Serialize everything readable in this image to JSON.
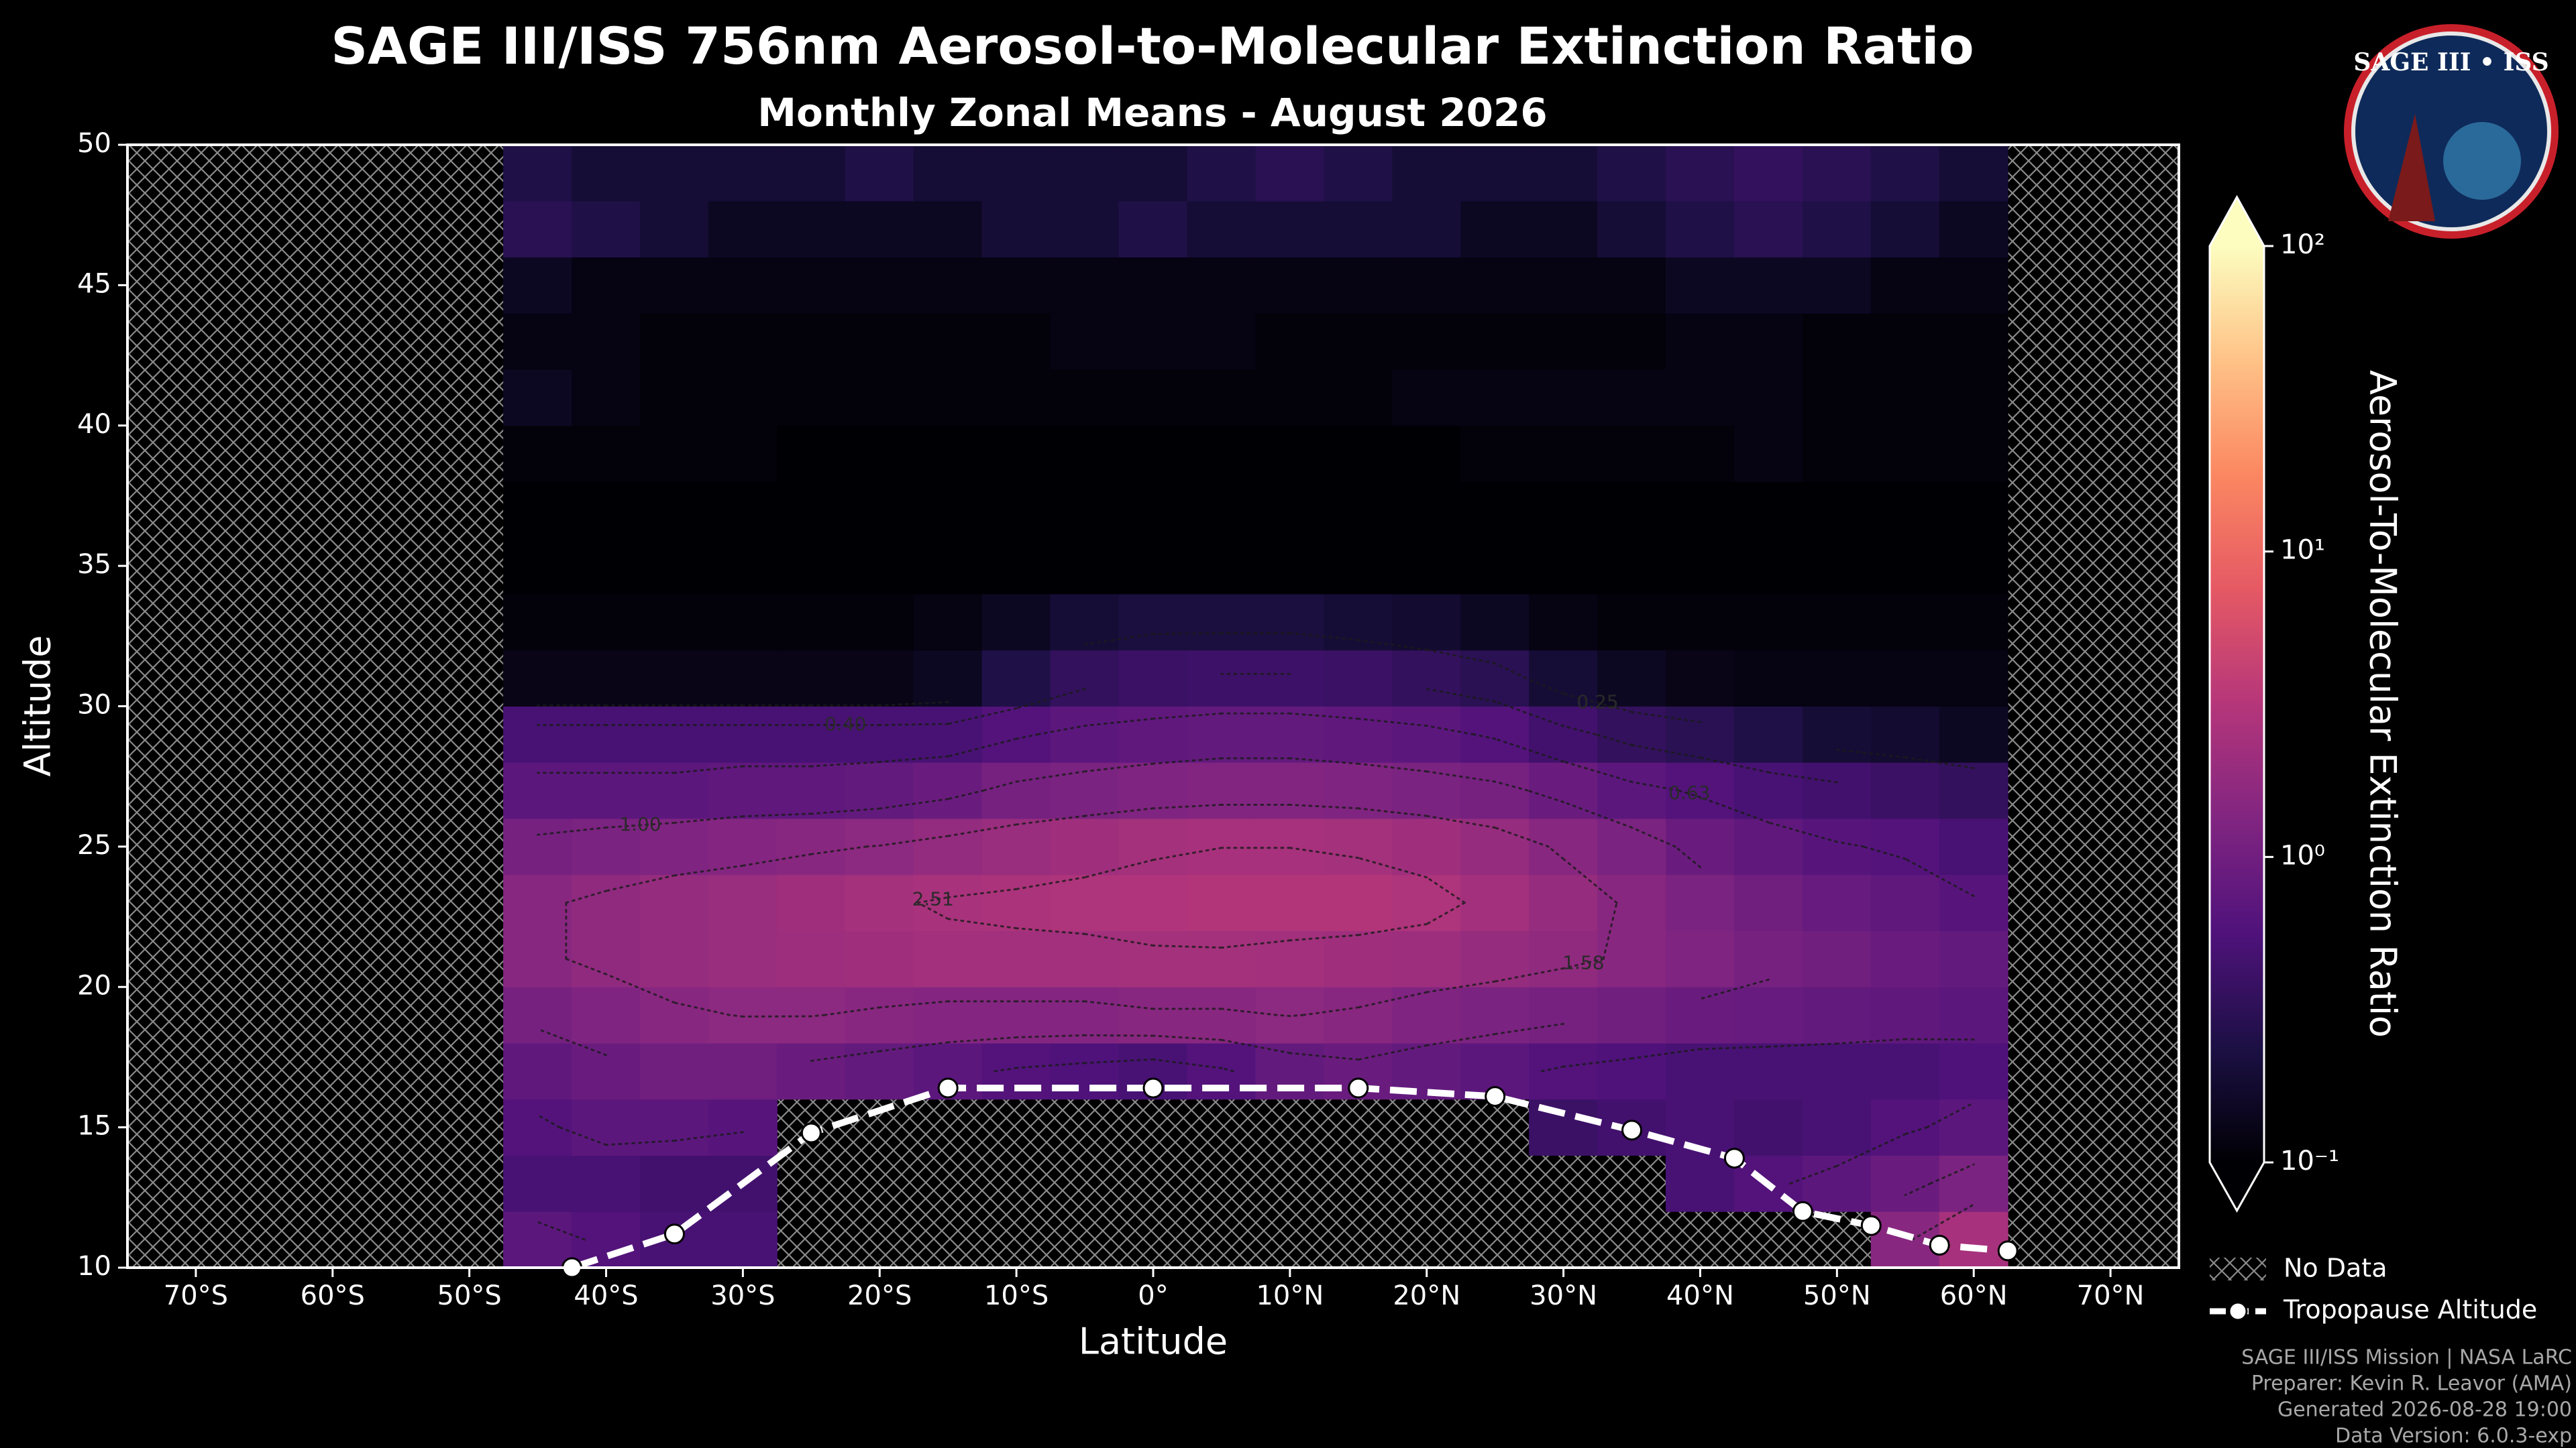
{
  "chart_data": {
    "type": "contour",
    "title": "SAGE III/ISS 756nm Aerosol-to-Molecular Extinction Ratio",
    "subtitle": "Monthly Zonal Means - August 2026",
    "x_label": "Latitude",
    "y_label": "Altitude",
    "xlim": [
      -75,
      75
    ],
    "xticks": [
      {
        "value": -70,
        "label": "70°S"
      },
      {
        "value": -60,
        "label": "60°S"
      },
      {
        "value": -50,
        "label": "50°S"
      },
      {
        "value": -40,
        "label": "40°S"
      },
      {
        "value": -30,
        "label": "30°S"
      },
      {
        "value": -20,
        "label": "20°S"
      },
      {
        "value": -10,
        "label": "10°S"
      },
      {
        "value": 0,
        "label": "0°"
      },
      {
        "value": 10,
        "label": "10°N"
      },
      {
        "value": 20,
        "label": "20°N"
      },
      {
        "value": 30,
        "label": "30°N"
      },
      {
        "value": 40,
        "label": "40°N"
      },
      {
        "value": 50,
        "label": "50°N"
      },
      {
        "value": 60,
        "label": "60°N"
      },
      {
        "value": 70,
        "label": "70°N"
      }
    ],
    "ylim": [
      10,
      50
    ],
    "yticks": [
      10,
      15,
      20,
      25,
      30,
      35,
      40,
      45,
      50
    ],
    "x_edges": [
      -47.5,
      -42.5,
      -37.5,
      -32.5,
      -27.5,
      -22.5,
      -17.5,
      -12.5,
      -7.5,
      -2.5,
      2.5,
      7.5,
      12.5,
      17.5,
      22.5,
      27.5,
      32.5,
      37.5,
      42.5,
      47.5,
      52.5,
      57.5,
      62.5
    ],
    "y_edges": [
      10,
      12,
      14,
      16,
      18,
      20,
      22,
      24,
      26,
      28,
      30,
      32,
      34,
      36,
      38,
      40,
      42,
      44,
      46,
      48,
      50
    ],
    "z": [
      [
        0.7,
        0.6,
        0.5,
        0.5,
        null,
        null,
        null,
        null,
        null,
        null,
        null,
        null,
        null,
        null,
        null,
        null,
        null,
        null,
        null,
        null,
        1.5,
        2.5
      ],
      [
        0.5,
        0.5,
        0.45,
        0.45,
        null,
        null,
        null,
        null,
        null,
        null,
        null,
        null,
        null,
        null,
        null,
        null,
        null,
        0.5,
        0.6,
        0.7,
        0.9,
        1.2
      ],
      [
        0.6,
        0.7,
        0.7,
        0.65,
        null,
        null,
        null,
        null,
        null,
        null,
        null,
        null,
        null,
        null,
        null,
        0.4,
        0.45,
        0.5,
        0.45,
        0.5,
        0.6,
        0.7
      ],
      [
        0.75,
        0.9,
        1,
        1,
        0.9,
        0.8,
        0.7,
        0.6,
        0.55,
        0.5,
        0.6,
        0.8,
        0.9,
        0.8,
        0.7,
        0.6,
        0.55,
        0.5,
        0.5,
        0.5,
        0.5,
        0.55
      ],
      [
        1.1,
        1.3,
        1.5,
        1.6,
        1.6,
        1.5,
        1.4,
        1.4,
        1.4,
        1.5,
        1.5,
        1.6,
        1.5,
        1.3,
        1.2,
        1.1,
        1,
        0.9,
        0.85,
        0.8,
        0.75,
        0.7
      ],
      [
        1.5,
        1.7,
        1.9,
        2,
        2.1,
        2.2,
        2.3,
        2.3,
        2.3,
        2.4,
        2.4,
        2.3,
        2.2,
        2.1,
        1.9,
        1.7,
        1.5,
        1.3,
        1.1,
        1,
        0.9,
        0.8
      ],
      [
        1.5,
        1.7,
        1.9,
        2,
        2.2,
        2.4,
        2.6,
        2.7,
        2.8,
        2.9,
        3,
        3,
        3,
        2.8,
        2.3,
        1.9,
        1.5,
        1.2,
        1,
        0.85,
        0.75,
        0.65
      ],
      [
        1.1,
        1.2,
        1.3,
        1.4,
        1.5,
        1.6,
        1.8,
        2,
        2.2,
        2.4,
        2.5,
        2.5,
        2.4,
        2.2,
        1.9,
        1.5,
        1.2,
        0.9,
        0.75,
        0.65,
        0.6,
        0.5
      ],
      [
        0.7,
        0.7,
        0.7,
        0.75,
        0.75,
        0.8,
        0.9,
        1.1,
        1.2,
        1.3,
        1.35,
        1.35,
        1.3,
        1.2,
        1.1,
        0.9,
        0.7,
        0.6,
        0.5,
        0.45,
        0.4,
        0.35
      ],
      [
        0.5,
        0.5,
        0.5,
        0.5,
        0.5,
        0.5,
        0.5,
        0.6,
        0.7,
        0.75,
        0.8,
        0.8,
        0.75,
        0.7,
        0.6,
        0.45,
        0.35,
        0.3,
        0.25,
        0.2,
        0.18,
        0.15
      ],
      [
        0.13,
        0.13,
        0.13,
        0.13,
        0.13,
        0.13,
        0.15,
        0.25,
        0.35,
        0.4,
        0.42,
        0.42,
        0.4,
        0.35,
        0.3,
        0.2,
        0.15,
        0.13,
        0.12,
        0.12,
        0.12,
        0.12
      ],
      [
        0.11,
        0.11,
        0.11,
        0.11,
        0.11,
        0.11,
        0.12,
        0.15,
        0.2,
        0.22,
        0.22,
        0.22,
        0.2,
        0.18,
        0.15,
        0.12,
        0.11,
        0.11,
        0.11,
        0.11,
        0.11,
        0.11
      ],
      [
        0.1,
        0.1,
        0.1,
        0.1,
        0.1,
        0.1,
        0.1,
        0.1,
        0.1,
        0.1,
        0.1,
        0.1,
        0.1,
        0.1,
        0.1,
        0.1,
        0.1,
        0.1,
        0.1,
        0.1,
        0.1,
        0.1
      ],
      [
        0.1,
        0.1,
        0.1,
        0.1,
        0.1,
        0.1,
        0.1,
        0.1,
        0.1,
        0.1,
        0.1,
        0.1,
        0.1,
        0.1,
        0.1,
        0.1,
        0.1,
        0.1,
        0.1,
        0.1,
        0.1,
        0.1
      ],
      [
        0.11,
        0.11,
        0.11,
        0.11,
        0.1,
        0.1,
        0.1,
        0.1,
        0.1,
        0.1,
        0.1,
        0.1,
        0.1,
        0.1,
        0.11,
        0.11,
        0.11,
        0.11,
        0.12,
        0.11,
        0.11,
        0.11
      ],
      [
        0.15,
        0.12,
        0.11,
        0.11,
        0.11,
        0.11,
        0.11,
        0.11,
        0.11,
        0.11,
        0.11,
        0.11,
        0.11,
        0.12,
        0.12,
        0.12,
        0.12,
        0.12,
        0.12,
        0.11,
        0.11,
        0.11
      ],
      [
        0.12,
        0.12,
        0.11,
        0.11,
        0.11,
        0.11,
        0.11,
        0.11,
        0.12,
        0.12,
        0.12,
        0.11,
        0.11,
        0.11,
        0.11,
        0.11,
        0.11,
        0.12,
        0.12,
        0.11,
        0.11,
        0.11
      ],
      [
        0.15,
        0.12,
        0.12,
        0.12,
        0.12,
        0.12,
        0.12,
        0.12,
        0.12,
        0.12,
        0.12,
        0.12,
        0.12,
        0.12,
        0.12,
        0.12,
        0.12,
        0.15,
        0.15,
        0.15,
        0.12,
        0.12
      ],
      [
        0.3,
        0.25,
        0.2,
        0.15,
        0.15,
        0.15,
        0.15,
        0.2,
        0.2,
        0.25,
        0.2,
        0.2,
        0.2,
        0.2,
        0.15,
        0.15,
        0.2,
        0.25,
        0.3,
        0.25,
        0.2,
        0.15
      ],
      [
        0.25,
        0.2,
        0.2,
        0.2,
        0.2,
        0.25,
        0.2,
        0.2,
        0.2,
        0.2,
        0.25,
        0.3,
        0.25,
        0.2,
        0.2,
        0.2,
        0.25,
        0.3,
        0.35,
        0.3,
        0.25,
        0.2
      ]
    ],
    "contour_levels": [
      0.25,
      {
        "value": 0.4,
        "label": "0.40"
      },
      0.63,
      {
        "value": 1,
        "label": "1.00"
      },
      1.58,
      2.51
    ],
    "colorbar": {
      "label": "Aerosol-To-Molecular Extinction Ratio",
      "scale": "log",
      "lim": [
        0.1,
        100
      ],
      "ticks": [
        {
          "value": 0.1,
          "label": "10⁻¹"
        },
        {
          "value": 1,
          "label": "10⁰"
        },
        {
          "value": 10,
          "label": "10¹"
        },
        {
          "value": 100,
          "label": "10²"
        }
      ],
      "colors": [
        "#000004",
        "#1c1044",
        "#4f127b",
        "#812581",
        "#b5367a",
        "#e55964",
        "#fb8761",
        "#fec287",
        "#fcfdbf"
      ]
    },
    "tropopause": {
      "name": "Tropopause Altitude",
      "color": "#ffffff",
      "lat": [
        -42.5,
        -35,
        -25,
        -15,
        0,
        15,
        25,
        35,
        42.5,
        47.5,
        52.5,
        57.5,
        62.5
      ],
      "alt": [
        10,
        11.2,
        14.8,
        16.4,
        16.4,
        16.4,
        16.1,
        14.9,
        13.9,
        12,
        11.5,
        10.8,
        10.6
      ]
    },
    "no_data_label": "No Data"
  },
  "footer": [
    "SAGE III/ISS Mission | NASA LaRC",
    "Preparer: Kevin R. Leavor (AMA)",
    "Generated 2026-08-28 19:00",
    "Data Version: 6.0.3-exp"
  ],
  "logo": {
    "title": "SAGE III • ISS"
  }
}
